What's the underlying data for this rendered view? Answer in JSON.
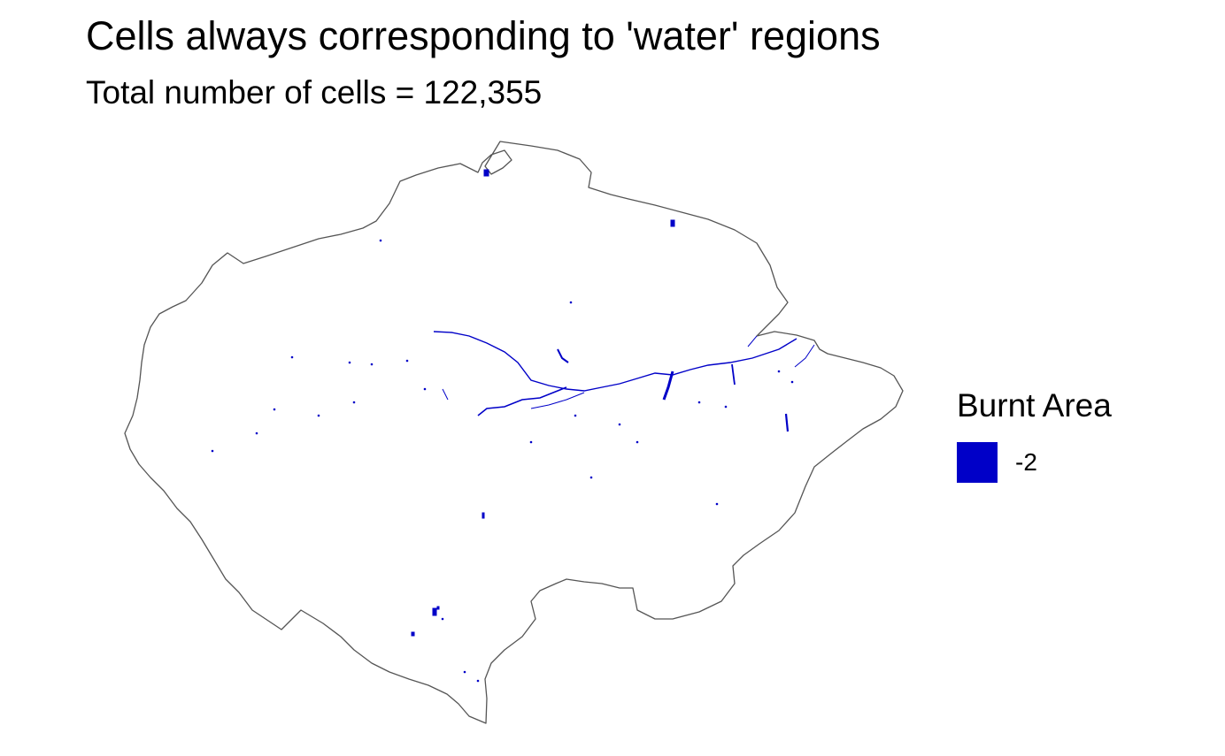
{
  "title": "Cells always corresponding to 'water' regions",
  "subtitle": "Total number of cells = 122,355",
  "legend": {
    "title": "Burnt Area",
    "items": [
      {
        "label": "-2",
        "color": "#0000c8"
      }
    ]
  },
  "colors": {
    "boundary": "#555555",
    "water": "#0000c8",
    "land": "#ffffff"
  }
}
